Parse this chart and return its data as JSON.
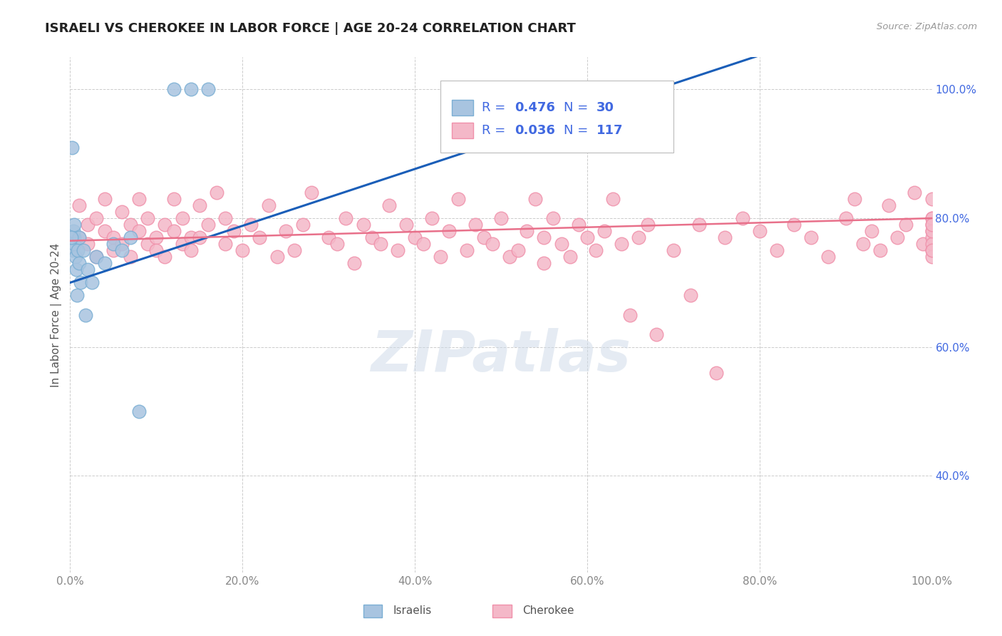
{
  "title": "ISRAELI VS CHEROKEE IN LABOR FORCE | AGE 20-24 CORRELATION CHART",
  "source_text": "Source: ZipAtlas.com",
  "ylabel": "In Labor Force | Age 20-24",
  "xlim": [
    0.0,
    1.0
  ],
  "ylim": [
    0.25,
    1.05
  ],
  "xticks": [
    0.0,
    0.2,
    0.4,
    0.6,
    0.8,
    1.0
  ],
  "yticks": [
    0.4,
    0.6,
    0.8,
    1.0
  ],
  "xticklabels": [
    "0.0%",
    "20.0%",
    "40.0%",
    "60.0%",
    "80.0%",
    "100.0%"
  ],
  "yticklabels_right": [
    "40.0%",
    "60.0%",
    "80.0%",
    "100.0%"
  ],
  "background_color": "#ffffff",
  "grid_color": "#cccccc",
  "watermark_text": "ZIPatlas",
  "israeli_color": "#a8c4e0",
  "cherokee_color": "#f4b8c8",
  "israeli_edge": "#7bafd4",
  "cherokee_edge": "#f090aa",
  "israeli_R": 0.476,
  "israeli_N": 30,
  "cherokee_R": 0.036,
  "cherokee_N": 117,
  "legend_color": "#4169e1",
  "tick_label_color": "#4169e1",
  "xtick_label_color": "#888888",
  "israeli_x": [
    0.002,
    0.005,
    0.12,
    0.14,
    0.16,
    0.003,
    0.003,
    0.004,
    0.005,
    0.005,
    0.006,
    0.007,
    0.008,
    0.009,
    0.01,
    0.01,
    0.012,
    0.015,
    0.018,
    0.02,
    0.025,
    0.03,
    0.04,
    0.05,
    0.06,
    0.07,
    0.08,
    0.52,
    0.68,
    0.001
  ],
  "israeli_y": [
    0.91,
    0.77,
    1.0,
    1.0,
    1.0,
    0.77,
    0.75,
    0.78,
    0.76,
    0.79,
    0.74,
    0.72,
    0.68,
    0.75,
    0.73,
    0.77,
    0.7,
    0.75,
    0.65,
    0.72,
    0.7,
    0.74,
    0.73,
    0.76,
    0.75,
    0.77,
    0.5,
    0.92,
    1.0,
    0.77
  ],
  "cherokee_x": [
    0.01,
    0.01,
    0.02,
    0.02,
    0.03,
    0.03,
    0.04,
    0.04,
    0.05,
    0.05,
    0.06,
    0.06,
    0.07,
    0.07,
    0.08,
    0.08,
    0.09,
    0.09,
    0.1,
    0.1,
    0.11,
    0.11,
    0.12,
    0.12,
    0.13,
    0.13,
    0.14,
    0.14,
    0.15,
    0.15,
    0.16,
    0.17,
    0.18,
    0.18,
    0.19,
    0.2,
    0.21,
    0.22,
    0.23,
    0.24,
    0.25,
    0.26,
    0.27,
    0.28,
    0.3,
    0.31,
    0.32,
    0.33,
    0.34,
    0.35,
    0.36,
    0.37,
    0.38,
    0.39,
    0.4,
    0.41,
    0.42,
    0.43,
    0.44,
    0.45,
    0.46,
    0.47,
    0.48,
    0.49,
    0.5,
    0.51,
    0.52,
    0.53,
    0.54,
    0.55,
    0.55,
    0.56,
    0.57,
    0.58,
    0.59,
    0.6,
    0.61,
    0.62,
    0.63,
    0.64,
    0.65,
    0.66,
    0.67,
    0.68,
    0.7,
    0.72,
    0.73,
    0.75,
    0.76,
    0.78,
    0.8,
    0.82,
    0.84,
    0.86,
    0.88,
    0.9,
    0.91,
    0.92,
    0.93,
    0.94,
    0.95,
    0.96,
    0.97,
    0.98,
    0.99,
    1.0,
    1.0,
    1.0,
    1.0,
    1.0,
    1.0,
    1.0,
    1.0,
    1.0,
    1.0,
    1.0,
    1.0
  ],
  "cherokee_y": [
    0.82,
    0.77,
    0.79,
    0.76,
    0.8,
    0.74,
    0.78,
    0.83,
    0.77,
    0.75,
    0.81,
    0.76,
    0.79,
    0.74,
    0.78,
    0.83,
    0.76,
    0.8,
    0.77,
    0.75,
    0.79,
    0.74,
    0.78,
    0.83,
    0.76,
    0.8,
    0.77,
    0.75,
    0.82,
    0.77,
    0.79,
    0.84,
    0.76,
    0.8,
    0.78,
    0.75,
    0.79,
    0.77,
    0.82,
    0.74,
    0.78,
    0.75,
    0.79,
    0.84,
    0.77,
    0.76,
    0.8,
    0.73,
    0.79,
    0.77,
    0.76,
    0.82,
    0.75,
    0.79,
    0.77,
    0.76,
    0.8,
    0.74,
    0.78,
    0.83,
    0.75,
    0.79,
    0.77,
    0.76,
    0.8,
    0.74,
    0.75,
    0.78,
    0.83,
    0.73,
    0.77,
    0.8,
    0.76,
    0.74,
    0.79,
    0.77,
    0.75,
    0.78,
    0.83,
    0.76,
    0.65,
    0.77,
    0.79,
    0.62,
    0.75,
    0.68,
    0.79,
    0.56,
    0.77,
    0.8,
    0.78,
    0.75,
    0.79,
    0.77,
    0.74,
    0.8,
    0.83,
    0.76,
    0.78,
    0.75,
    0.82,
    0.77,
    0.79,
    0.84,
    0.76,
    0.8,
    0.78,
    0.75,
    0.79,
    0.77,
    0.76,
    0.8,
    0.74,
    0.78,
    0.83,
    0.75,
    0.79
  ]
}
